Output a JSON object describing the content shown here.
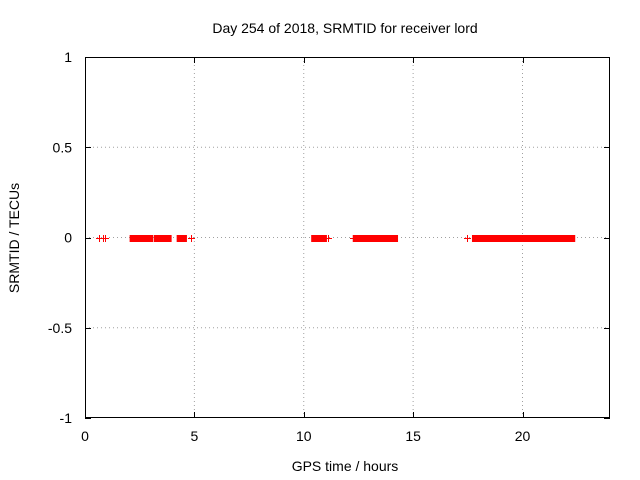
{
  "chart_data": {
    "type": "scatter",
    "title": "Day 254 of 2018, SRMTID for receiver lord",
    "xlabel": "GPS time / hours",
    "ylabel": "SRMTID / TECUs",
    "xlim": [
      0,
      24
    ],
    "ylim": [
      -1,
      1
    ],
    "grid": true,
    "marker": "+",
    "color": "#ff0000",
    "xticks": [
      0,
      5,
      10,
      15,
      20
    ],
    "xtick_labels": [
      "0",
      "5",
      "10",
      "15",
      "20"
    ],
    "yticks": [
      1,
      0.5,
      0,
      -0.5,
      -1
    ],
    "ytick_labels": [
      "1",
      "0.5",
      "0",
      "-0.5",
      "-1"
    ],
    "series": [
      {
        "name": "SRMTID",
        "note": "dense runs of points, each at value 0",
        "y": 0,
        "isolated_points_x": [
          0.65,
          0.8,
          0.9,
          4.85,
          11.1,
          12.25,
          17.45
        ],
        "segments_x": [
          [
            2.2,
            2.95
          ],
          [
            3.3,
            3.5
          ],
          [
            3.7,
            3.8
          ],
          [
            4.35,
            4.5
          ],
          [
            10.5,
            10.9
          ],
          [
            12.4,
            14.15
          ],
          [
            17.85,
            22.25
          ]
        ]
      }
    ]
  }
}
